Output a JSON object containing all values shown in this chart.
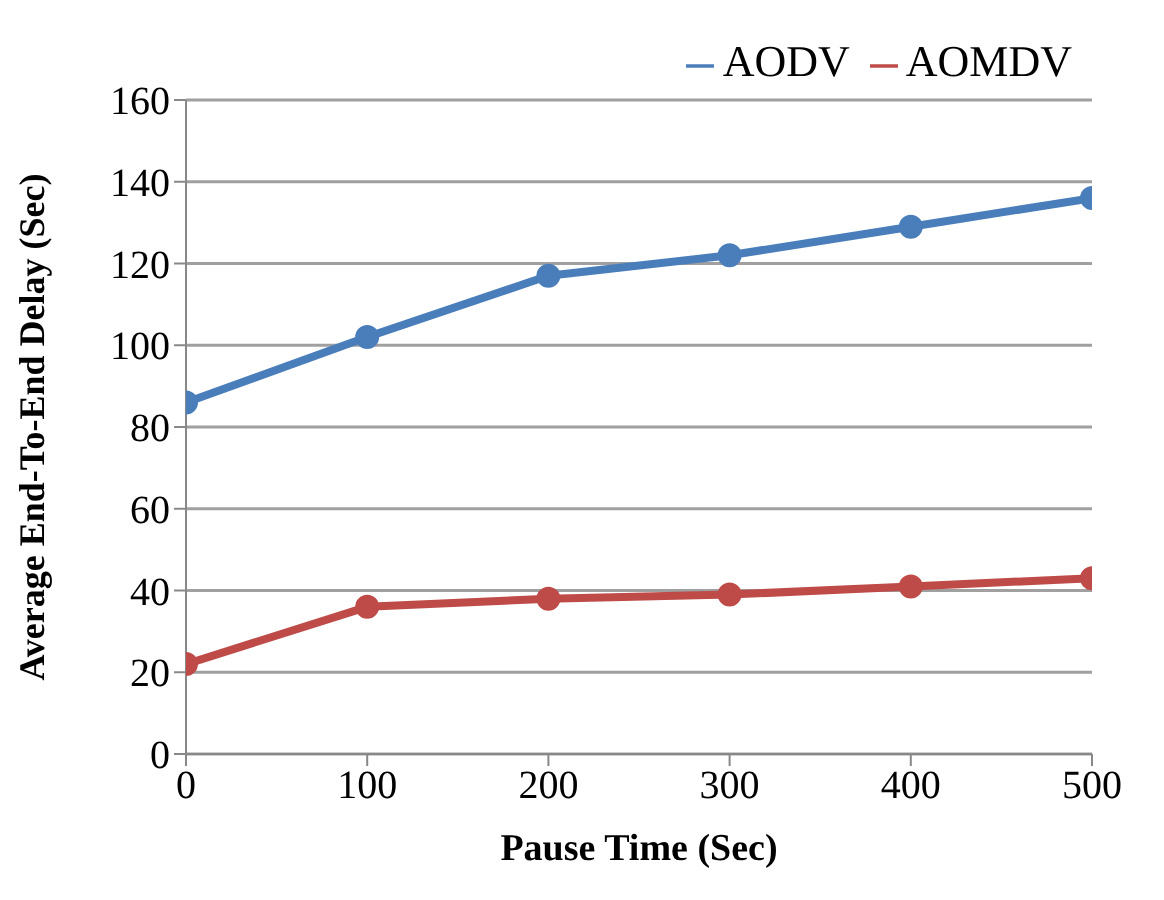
{
  "chart_data": {
    "type": "line",
    "xlabel": "Pause Time (Sec)",
    "ylabel": "Average End-To-End Delay (Sec)",
    "x": [
      0,
      100,
      200,
      300,
      400,
      500
    ],
    "xlim": [
      0,
      500
    ],
    "xticks": [
      0,
      100,
      200,
      300,
      400,
      500
    ],
    "ylim": [
      0,
      160
    ],
    "yticks": [
      0,
      20,
      40,
      60,
      80,
      100,
      120,
      140,
      160
    ],
    "grid": "y",
    "legend": "top right",
    "marker": "circle",
    "line_style": "solid",
    "series": [
      {
        "name": "AODV",
        "color": "#4a7ebb",
        "values": [
          86,
          102,
          117,
          122,
          129,
          136
        ]
      },
      {
        "name": "AOMDV",
        "color": "#be4b48",
        "values": [
          22,
          36,
          38,
          39,
          41,
          43
        ]
      }
    ]
  }
}
